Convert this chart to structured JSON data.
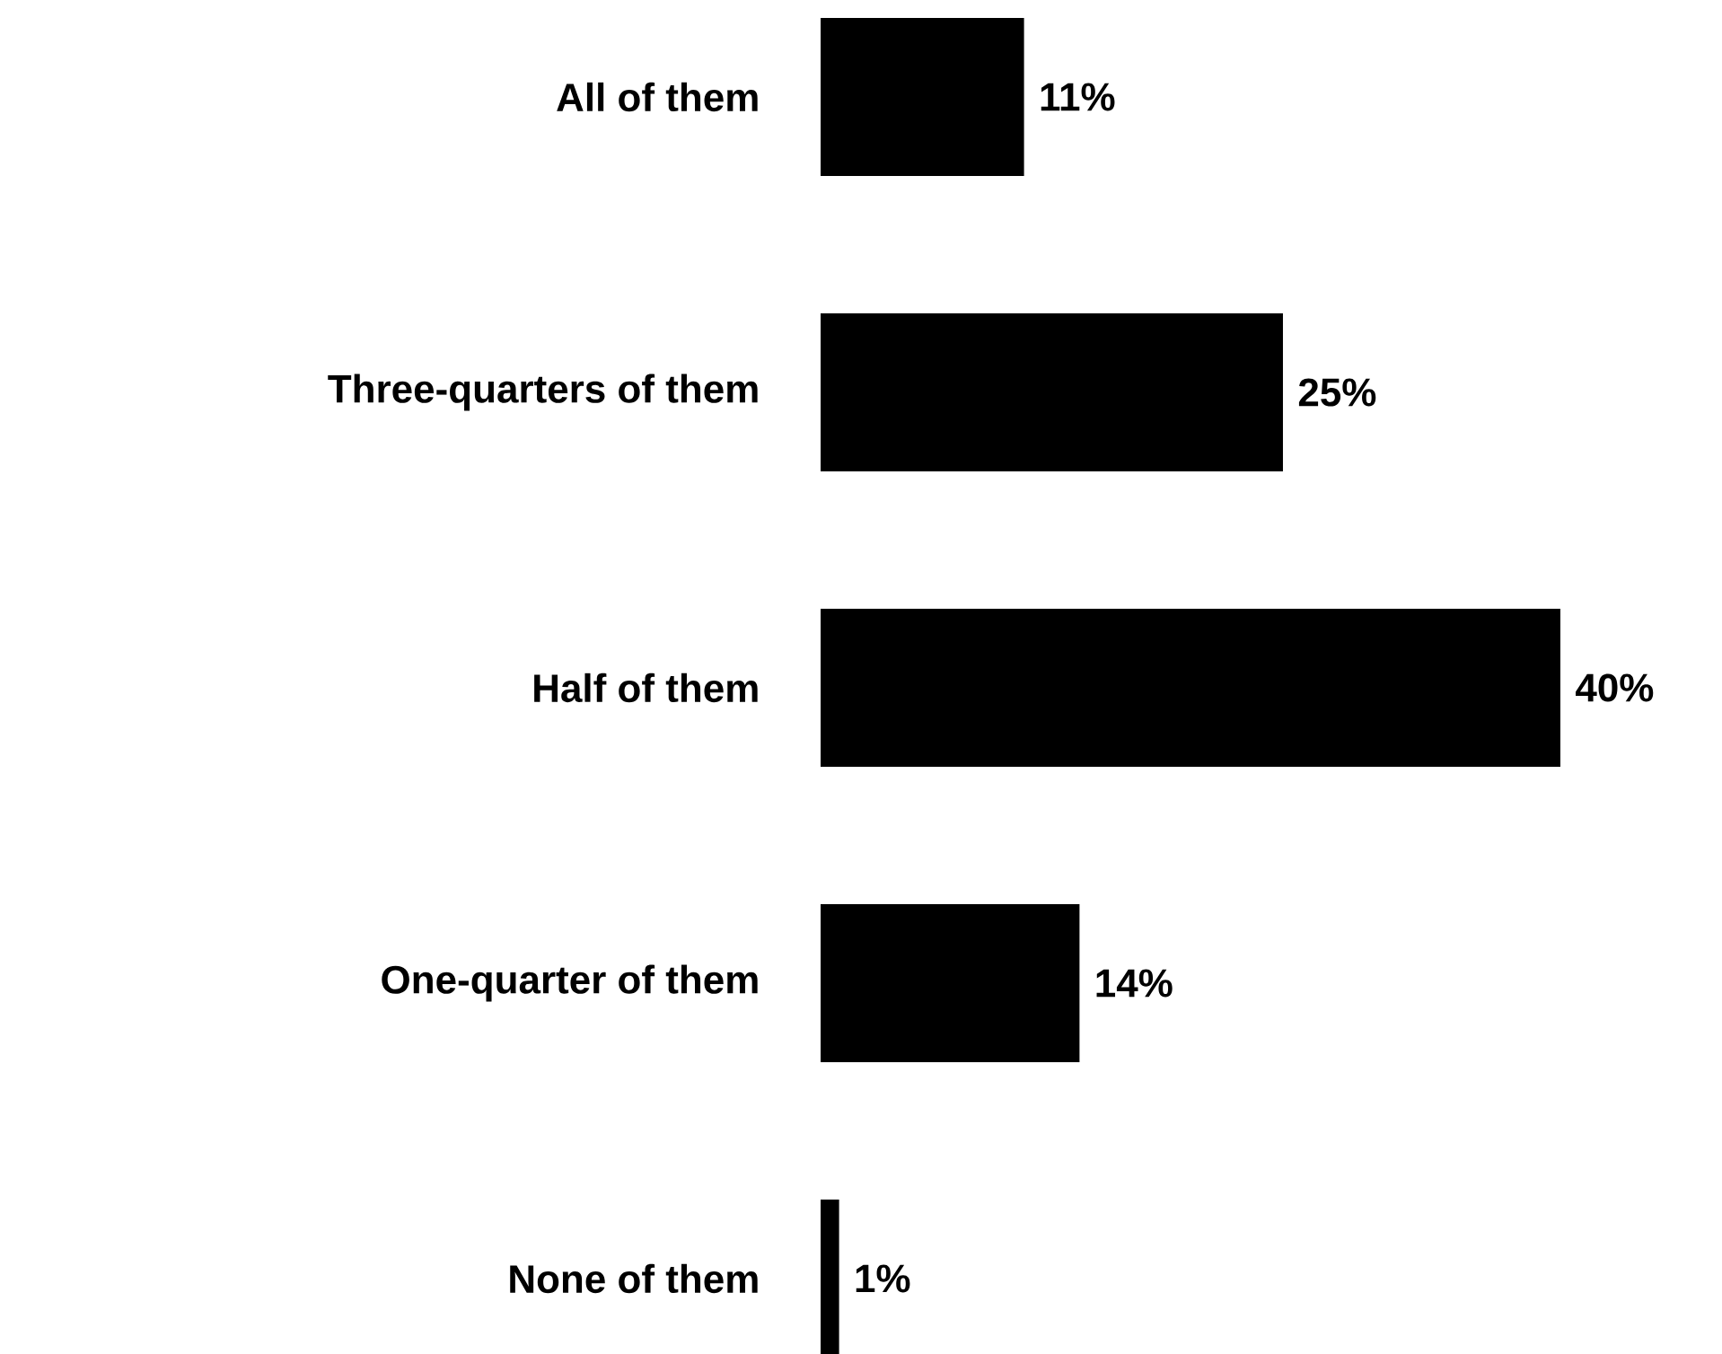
{
  "chart_data": {
    "type": "bar",
    "orientation": "horizontal",
    "categories": [
      "All of them",
      "Three-quarters of them",
      "Half of them",
      "One-quarter of them",
      "None of them"
    ],
    "values": [
      11,
      25,
      40,
      14,
      1
    ],
    "value_labels": [
      "11%",
      "25%",
      "40%",
      "14%",
      "1%"
    ],
    "color": "#000000"
  }
}
